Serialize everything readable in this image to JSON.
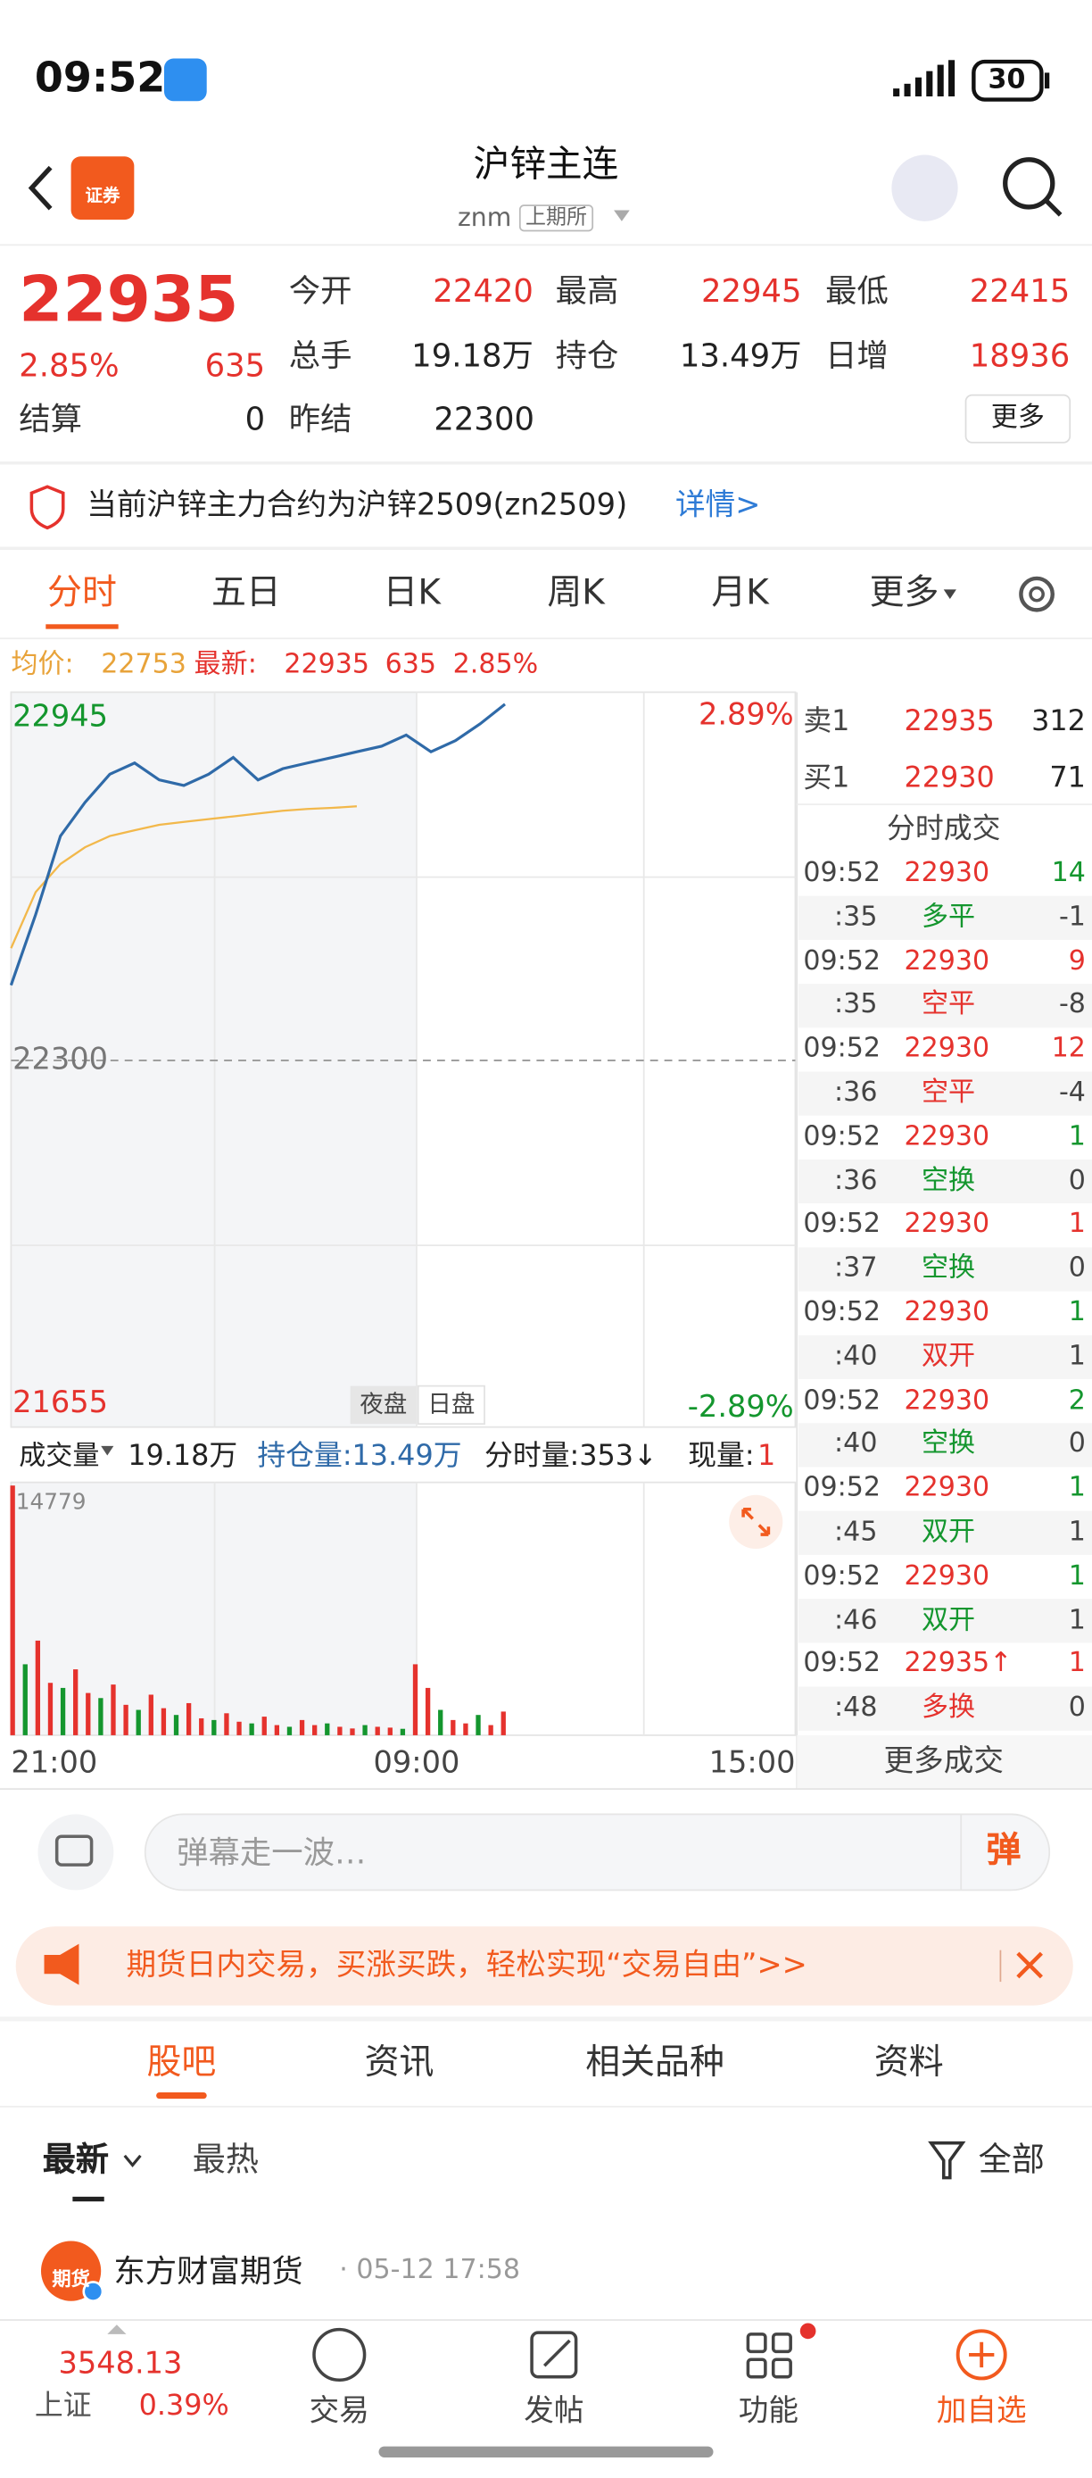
{
  "status_bar": {
    "time": "09:52",
    "battery": 30
  },
  "header": {
    "logo": "证券",
    "title": "沪锌主连",
    "code": "znm",
    "exchange": "上期所"
  },
  "quote": {
    "price": 22935,
    "change_pct": "2.85%",
    "change": 635,
    "fields": [
      {
        "label": "今开",
        "value": 22420
      },
      {
        "label": "最高",
        "value": 22945
      },
      {
        "label": "最低",
        "value": 22415
      },
      {
        "label": "总手",
        "value": "19.18万"
      },
      {
        "label": "持仓",
        "value": "13.49万"
      },
      {
        "label": "日增",
        "value": 18936
      },
      {
        "label": "结算",
        "value": 0
      },
      {
        "label": "昨结",
        "value": 22300
      }
    ],
    "more": "更多"
  },
  "notice": {
    "text": "当前沪锌主力合约为沪锌2509(zn2509)",
    "link": "详情>"
  },
  "tabs": [
    "分时",
    "五日",
    "日K",
    "周K",
    "月K",
    "更多"
  ],
  "info_line": {
    "avg_label": "均价:",
    "avg": 22753,
    "latest_label": "最新:",
    "latest": 22935,
    "change": 635,
    "change_pct": "2.85%"
  },
  "intraday": {
    "ylim": [
      21655,
      22945
    ],
    "yticks": [
      21655,
      22300,
      22945
    ],
    "pct_labels": [
      "2.89%",
      "-2.89%"
    ],
    "price_color": "#2f6aa8",
    "avg_color": "#f2b84b",
    "price": [
      22434,
      22560,
      22700,
      22760,
      22810,
      22830,
      22800,
      22790,
      22810,
      22840,
      22800,
      22820,
      22830,
      22840,
      22850,
      22860,
      22880,
      22850,
      22870,
      22900,
      22935
    ],
    "avg": [
      22500,
      22600,
      22650,
      22680,
      22700,
      22710,
      22720,
      22725,
      22730,
      22735,
      22740,
      22745,
      22748,
      22750,
      22753
    ],
    "sessions": [
      "夜盘",
      "日盘"
    ],
    "time_labels": [
      "21:00",
      "09:00",
      "15:00"
    ],
    "volume_ylim": [
      0,
      14779
    ],
    "volumes": [
      14779,
      4200,
      5600,
      3100,
      2800,
      3900,
      2500,
      2200,
      3000,
      1800,
      1500,
      2400,
      1600,
      1200,
      1900,
      1000,
      900,
      1300,
      800,
      700,
      1100,
      600,
      500,
      900,
      600,
      700,
      500,
      400,
      600,
      500,
      450,
      380,
      4200,
      2800,
      1500,
      900,
      700,
      1200,
      600,
      1400
    ],
    "volume_header": {
      "vol_label": "成交量",
      "vol": "19.18万",
      "oi": "持仓量:13.49万",
      "tick_vol": "分时量:353↓",
      "cur_label": "现量:",
      "cur": 1
    }
  },
  "order_book": {
    "ask_label": "卖1",
    "ask_price": 22935,
    "ask_vol": 312,
    "bid_label": "买1",
    "bid_price": 22930,
    "bid_vol": 71,
    "trades_title": "分时成交",
    "trades": [
      {
        "time": "09:52",
        "price": 22930,
        "vol": 14,
        "vol_color": "#14962e",
        "sec": ":35",
        "kind": "多平",
        "kind_color": "#14962e",
        "delta": -1
      },
      {
        "time": "09:52",
        "price": 22930,
        "vol": 9,
        "vol_color": "#e5322d",
        "sec": ":35",
        "kind": "空平",
        "kind_color": "#e5322d",
        "delta": -8
      },
      {
        "time": "09:52",
        "price": 22930,
        "vol": 12,
        "vol_color": "#e5322d",
        "sec": ":36",
        "kind": "空平",
        "kind_color": "#e5322d",
        "delta": -4
      },
      {
        "time": "09:52",
        "price": 22930,
        "vol": 1,
        "vol_color": "#14962e",
        "sec": ":36",
        "kind": "空换",
        "kind_color": "#14962e",
        "delta": 0
      },
      {
        "time": "09:52",
        "price": 22930,
        "vol": 1,
        "vol_color": "#e5322d",
        "sec": ":37",
        "kind": "空换",
        "kind_color": "#14962e",
        "delta": 0
      },
      {
        "time": "09:52",
        "price": 22930,
        "vol": 1,
        "vol_color": "#14962e",
        "sec": ":40",
        "kind": "双开",
        "kind_color": "#e5322d",
        "delta": 1
      },
      {
        "time": "09:52",
        "price": 22930,
        "vol": 2,
        "vol_color": "#14962e",
        "sec": ":40",
        "kind": "空换",
        "kind_color": "#14962e",
        "delta": 0
      },
      {
        "time": "09:52",
        "price": 22930,
        "vol": 1,
        "vol_color": "#14962e",
        "sec": ":45",
        "kind": "双开",
        "kind_color": "#14962e",
        "delta": 1
      },
      {
        "time": "09:52",
        "price": 22930,
        "vol": 1,
        "vol_color": "#14962e",
        "sec": ":46",
        "kind": "双开",
        "kind_color": "#14962e",
        "delta": 1
      },
      {
        "time": "09:52",
        "price": "22935↑",
        "vol": 1,
        "vol_color": "#e5322d",
        "sec": ":48",
        "kind": "多换",
        "kind_color": "#e5322d",
        "delta": 0
      }
    ],
    "more": "更多成交"
  },
  "comment": {
    "placeholder": "弹幕走一波…",
    "button": "弹"
  },
  "banner": {
    "text": "期货日内交易，买涨买跌，轻松实现“交易自由”>>"
  },
  "section_tabs": [
    "股吧",
    "资讯",
    "相关品种",
    "资料"
  ],
  "filters": {
    "latest": "最新",
    "hot": "最热",
    "all": "全部"
  },
  "post": {
    "avatar": "期货",
    "author": "东方财富期货",
    "time": "· 05-12 17:58"
  },
  "bottom_nav": {
    "index_value": 3548.13,
    "index_name": "上证",
    "index_change": "0.39%",
    "items": [
      "交易",
      "发帖",
      "功能",
      "加自选"
    ]
  }
}
